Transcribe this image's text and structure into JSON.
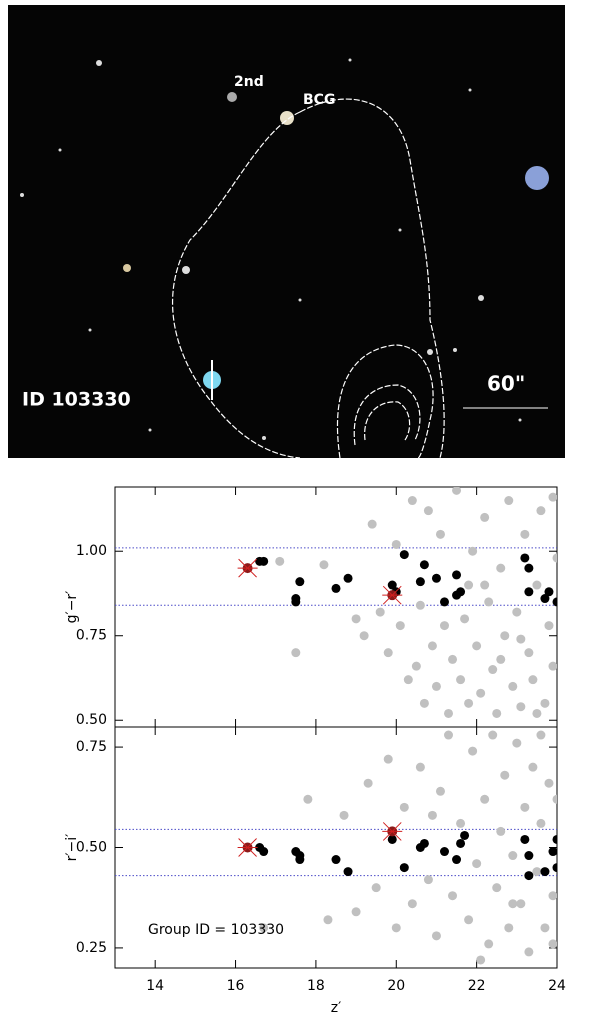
{
  "image": {
    "labels": [
      "2nd",
      "BCG",
      "ID 103330",
      "60\""
    ]
  },
  "chart_data": [
    {
      "type": "scatter",
      "ylabel": "g′−r′",
      "xlim": [
        13,
        24
      ],
      "ylim": [
        0.48,
        1.19
      ],
      "yticks": [
        {
          "value": 0.5,
          "label": "0.50"
        },
        {
          "value": 0.75,
          "label": "0.75"
        },
        {
          "value": 1.0,
          "label": "1.00"
        }
      ],
      "hlines": [
        1.01,
        0.84
      ],
      "hline_color": "#4b4bc8",
      "series": [
        {
          "color": "#c0c0c0",
          "marker": "dot",
          "x": [
            17.1,
            17.5,
            18.2,
            19.0,
            19.2,
            19.4,
            19.6,
            19.8,
            20.0,
            20.1,
            20.3,
            20.4,
            20.5,
            20.7,
            20.8,
            20.9,
            21.0,
            21.1,
            21.2,
            21.3,
            21.4,
            21.5,
            21.6,
            21.7,
            21.8,
            21.9,
            22.0,
            22.1,
            22.2,
            22.3,
            22.4,
            22.5,
            22.6,
            22.7,
            22.8,
            22.9,
            23.0,
            23.1,
            23.2,
            23.3,
            23.4,
            23.5,
            23.6,
            23.7,
            23.8,
            23.9,
            24.0,
            23.5,
            22.2,
            21.8,
            20.6,
            22.6,
            23.9,
            23.1
          ],
          "values": [
            0.97,
            0.7,
            0.96,
            0.8,
            0.75,
            1.08,
            0.82,
            0.7,
            1.02,
            0.78,
            0.62,
            1.15,
            0.66,
            0.55,
            1.12,
            0.72,
            0.6,
            1.05,
            0.78,
            0.52,
            0.68,
            1.18,
            0.62,
            0.8,
            0.55,
            1.0,
            0.72,
            0.58,
            1.1,
            0.85,
            0.65,
            0.52,
            0.95,
            0.75,
            1.15,
            0.6,
            0.82,
            0.54,
            1.05,
            0.7,
            0.62,
            0.9,
            1.12,
            0.55,
            0.78,
            0.66,
            0.98,
            0.52,
            0.9,
            0.9,
            0.84,
            0.68,
            1.16,
            0.74
          ]
        },
        {
          "color": "#000000",
          "marker": "dot",
          "x": [
            16.6,
            16.7,
            17.6,
            17.5,
            17.5,
            18.5,
            18.8,
            19.9,
            20.2,
            20.7,
            20.6,
            20.0,
            21.0,
            21.2,
            21.5,
            21.5,
            21.6,
            23.2,
            23.3,
            23.3,
            23.7,
            23.8,
            24.0
          ],
          "values": [
            0.97,
            0.97,
            0.91,
            0.86,
            0.85,
            0.89,
            0.92,
            0.9,
            0.99,
            0.96,
            0.91,
            0.88,
            0.92,
            0.85,
            0.93,
            0.87,
            0.88,
            0.98,
            0.95,
            0.88,
            0.86,
            0.88,
            0.85
          ]
        },
        {
          "color": "#8b1a1a",
          "marker": "starred",
          "x": [
            16.3,
            19.9
          ],
          "values": [
            0.95,
            0.87
          ]
        }
      ]
    },
    {
      "type": "scatter",
      "ylabel": "r′−i′",
      "xlabel": "z′",
      "annotation": "Group ID = 103330",
      "xlim": [
        13,
        24
      ],
      "xticks": [
        14,
        16,
        18,
        20,
        22,
        24
      ],
      "ylim": [
        0.2,
        0.8
      ],
      "yticks": [
        {
          "value": 0.25,
          "label": "0.25"
        },
        {
          "value": 0.5,
          "label": "0.50"
        },
        {
          "value": 0.75,
          "label": "0.75"
        }
      ],
      "hlines": [
        0.545,
        0.43
      ],
      "hline_color": "#4b4bc8",
      "series": [
        {
          "color": "#c0c0c0",
          "marker": "dot",
          "x": [
            16.7,
            17.8,
            18.3,
            18.7,
            19.0,
            19.3,
            19.5,
            19.8,
            20.0,
            20.2,
            20.4,
            20.6,
            20.8,
            21.0,
            21.1,
            21.3,
            21.4,
            21.6,
            21.8,
            21.9,
            22.0,
            22.2,
            22.3,
            22.4,
            22.5,
            22.6,
            22.7,
            22.8,
            22.9,
            23.0,
            23.1,
            23.2,
            23.3,
            23.4,
            23.5,
            23.6,
            23.7,
            23.8,
            23.9,
            24.0,
            23.6,
            22.1,
            23.9,
            20.9,
            22.9
          ],
          "values": [
            0.3,
            0.62,
            0.32,
            0.58,
            0.34,
            0.66,
            0.4,
            0.72,
            0.3,
            0.6,
            0.36,
            0.7,
            0.42,
            0.28,
            0.64,
            0.78,
            0.38,
            0.56,
            0.32,
            0.74,
            0.46,
            0.62,
            0.26,
            0.78,
            0.4,
            0.54,
            0.68,
            0.3,
            0.48,
            0.76,
            0.36,
            0.6,
            0.24,
            0.7,
            0.44,
            0.56,
            0.3,
            0.66,
            0.38,
            0.62,
            0.78,
            0.22,
            0.26,
            0.58,
            0.36
          ]
        },
        {
          "color": "#000000",
          "marker": "dot",
          "x": [
            16.6,
            16.7,
            17.5,
            17.6,
            17.6,
            18.5,
            18.8,
            19.9,
            20.2,
            20.6,
            20.7,
            21.2,
            21.5,
            21.6,
            21.7,
            23.2,
            23.3,
            23.3,
            23.7,
            23.9,
            24.0,
            24.0
          ],
          "values": [
            0.5,
            0.49,
            0.49,
            0.47,
            0.48,
            0.47,
            0.44,
            0.52,
            0.45,
            0.5,
            0.51,
            0.49,
            0.47,
            0.51,
            0.53,
            0.52,
            0.48,
            0.43,
            0.44,
            0.49,
            0.52,
            0.45
          ]
        },
        {
          "color": "#8b1a1a",
          "marker": "starred",
          "x": [
            16.3,
            19.9
          ],
          "values": [
            0.5,
            0.54
          ]
        }
      ]
    }
  ]
}
